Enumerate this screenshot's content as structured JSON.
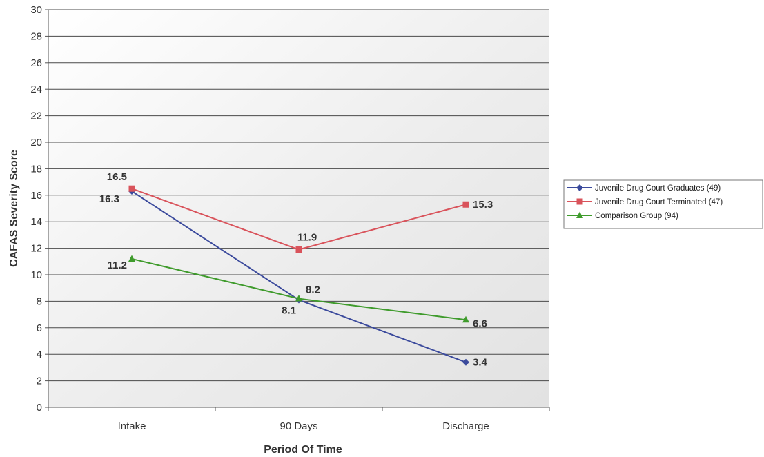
{
  "chart_data": {
    "type": "line",
    "title": "",
    "xlabel": "Period Of Time",
    "ylabel": "CAFAS Severity Score",
    "categories": [
      "Intake",
      "90 Days",
      "Discharge"
    ],
    "ylim": [
      0,
      30
    ],
    "yticks": [
      0,
      2,
      4,
      6,
      8,
      10,
      12,
      14,
      16,
      18,
      20,
      22,
      24,
      26,
      28,
      30
    ],
    "grid": true,
    "legend_position": "right",
    "series": [
      {
        "name": "Juvenile Drug Court Graduates (49)",
        "values": [
          16.3,
          8.1,
          3.4
        ],
        "color": "#3b4a9c",
        "marker": "diamond"
      },
      {
        "name": "Juvenile Drug Court Terminated (47)",
        "values": [
          16.5,
          11.9,
          15.3
        ],
        "color": "#d9535b",
        "marker": "square"
      },
      {
        "name": "Comparison Group (94)",
        "values": [
          11.2,
          8.2,
          6.6
        ],
        "color": "#3f9b2c",
        "marker": "triangle"
      }
    ]
  }
}
